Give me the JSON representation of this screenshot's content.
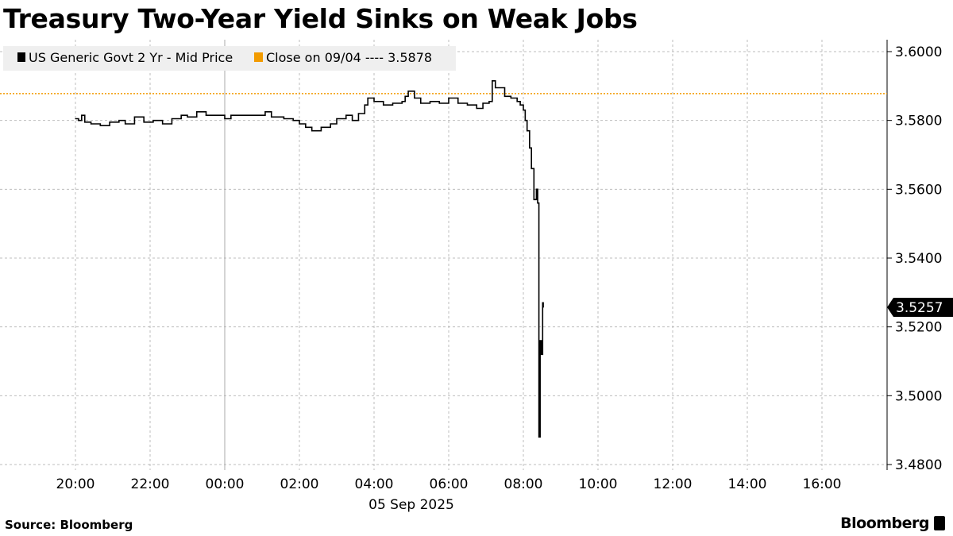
{
  "title": "Treasury Two-Year Yield Sinks on Weak Jobs",
  "source": "Source: Bloomberg",
  "logo": "Bloomberg",
  "chart_data": {
    "type": "line",
    "title": "Treasury Two-Year Yield Sinks on Weak Jobs",
    "xlabel": "05 Sep 2025",
    "ylabel": "",
    "x_ticks": [
      "20:00",
      "22:00",
      "00:00",
      "02:00",
      "04:00",
      "06:00",
      "08:00",
      "10:00",
      "12:00",
      "14:00",
      "16:00"
    ],
    "x_range": [
      "2025-09-04 19:00",
      "2025-09-05 17:45"
    ],
    "y_ticks": [
      "3.4800",
      "3.5000",
      "3.5200",
      "3.5400",
      "3.5600",
      "3.5800",
      "3.6000"
    ],
    "ylim": [
      3.48,
      3.6
    ],
    "y_axis_side": "right",
    "grid": true,
    "legend_position": "top-left",
    "last_value_label": "3.5257",
    "colors": {
      "series": "#000000",
      "close": "#f29b00",
      "grid": "#bdbdbd"
    },
    "series": [
      {
        "name": "US Generic Govt 2 Yr - Mid Price",
        "step": true,
        "points": [
          [
            "2025-09-04 20:00",
            3.5805
          ],
          [
            "2025-09-04 20:05",
            3.58
          ],
          [
            "2025-09-04 20:10",
            3.5815
          ],
          [
            "2025-09-04 20:15",
            3.5795
          ],
          [
            "2025-09-04 20:25",
            3.579
          ],
          [
            "2025-09-04 20:40",
            3.5785
          ],
          [
            "2025-09-04 20:55",
            3.5795
          ],
          [
            "2025-09-04 21:10",
            3.58
          ],
          [
            "2025-09-04 21:20",
            3.579
          ],
          [
            "2025-09-04 21:35",
            3.581
          ],
          [
            "2025-09-04 21:50",
            3.5795
          ],
          [
            "2025-09-04 22:05",
            3.58
          ],
          [
            "2025-09-04 22:20",
            3.579
          ],
          [
            "2025-09-04 22:35",
            3.5805
          ],
          [
            "2025-09-04 22:50",
            3.5815
          ],
          [
            "2025-09-04 23:00",
            3.581
          ],
          [
            "2025-09-04 23:15",
            3.5825
          ],
          [
            "2025-09-04 23:30",
            3.5815
          ],
          [
            "2025-09-04 23:45",
            3.5815
          ],
          [
            "2025-09-05 00:00",
            3.5805
          ],
          [
            "2025-09-05 00:10",
            3.5815
          ],
          [
            "2025-09-05 01:00",
            3.5815
          ],
          [
            "2025-09-05 01:05",
            3.5825
          ],
          [
            "2025-09-05 01:15",
            3.581
          ],
          [
            "2025-09-05 01:35",
            3.5805
          ],
          [
            "2025-09-05 01:50",
            3.58
          ],
          [
            "2025-09-05 02:00",
            3.579
          ],
          [
            "2025-09-05 02:10",
            3.578
          ],
          [
            "2025-09-05 02:20",
            3.577
          ],
          [
            "2025-09-05 02:35",
            3.578
          ],
          [
            "2025-09-05 02:50",
            3.579
          ],
          [
            "2025-09-05 03:00",
            3.5805
          ],
          [
            "2025-09-05 03:15",
            3.5815
          ],
          [
            "2025-09-05 03:25",
            3.58
          ],
          [
            "2025-09-05 03:35",
            3.582
          ],
          [
            "2025-09-05 03:45",
            3.5845
          ],
          [
            "2025-09-05 03:50",
            3.5865
          ],
          [
            "2025-09-05 04:00",
            3.5855
          ],
          [
            "2025-09-05 04:15",
            3.5845
          ],
          [
            "2025-09-05 04:30",
            3.585
          ],
          [
            "2025-09-05 04:45",
            3.5855
          ],
          [
            "2025-09-05 04:50",
            3.587
          ],
          [
            "2025-09-05 04:55",
            3.5885
          ],
          [
            "2025-09-05 05:05",
            3.5865
          ],
          [
            "2025-09-05 05:15",
            3.585
          ],
          [
            "2025-09-05 05:30",
            3.5855
          ],
          [
            "2025-09-05 05:45",
            3.585
          ],
          [
            "2025-09-05 06:00",
            3.5865
          ],
          [
            "2025-09-05 06:15",
            3.585
          ],
          [
            "2025-09-05 06:30",
            3.5845
          ],
          [
            "2025-09-05 06:45",
            3.5835
          ],
          [
            "2025-09-05 06:55",
            3.585
          ],
          [
            "2025-09-05 07:05",
            3.5855
          ],
          [
            "2025-09-05 07:10",
            3.5915
          ],
          [
            "2025-09-05 07:15",
            3.5895
          ],
          [
            "2025-09-05 07:30",
            3.587
          ],
          [
            "2025-09-05 07:40",
            3.5865
          ],
          [
            "2025-09-05 07:50",
            3.5855
          ],
          [
            "2025-09-05 07:55",
            3.5845
          ],
          [
            "2025-09-05 08:00",
            3.583
          ],
          [
            "2025-09-05 08:03",
            3.58
          ],
          [
            "2025-09-05 08:06",
            3.577
          ],
          [
            "2025-09-05 08:10",
            3.572
          ],
          [
            "2025-09-05 08:13",
            3.566
          ],
          [
            "2025-09-05 08:17",
            3.557
          ],
          [
            "2025-09-05 08:21",
            3.56
          ],
          [
            "2025-09-05 08:23",
            3.556
          ],
          [
            "2025-09-05 08:25",
            3.488
          ],
          [
            "2025-09-05 08:27",
            3.516
          ],
          [
            "2025-09-05 08:29",
            3.512
          ],
          [
            "2025-09-05 08:31",
            3.527
          ],
          [
            "2025-09-05 08:32",
            3.5257
          ]
        ]
      },
      {
        "name": "Close on 09/04 ---- 3.5878",
        "type": "hline",
        "value": 3.5878
      }
    ]
  }
}
